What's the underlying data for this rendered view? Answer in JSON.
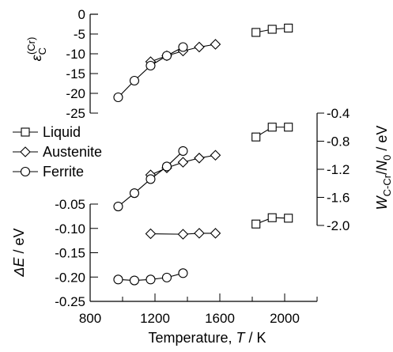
{
  "chart_data": [
    {
      "type": "line",
      "panel": "top",
      "ylabel": "ε_C^(Cr)",
      "ylabel_parts": {
        "sym": "ε",
        "sub": "C",
        "sup": "(Cr)"
      },
      "ylim": [
        -25,
        0
      ],
      "yticks": [
        0,
        -5,
        -10,
        -15,
        -20,
        -25
      ],
      "ytick_labels": [
        "0",
        "-5",
        "-10",
        "-15",
        "-20",
        "-25"
      ],
      "series": [
        {
          "name": "Liquid",
          "marker": "square",
          "x": [
            1823,
            1923,
            2023
          ],
          "y": [
            -4.6,
            -3.8,
            -3.5
          ]
        },
        {
          "name": "Austenite",
          "marker": "diamond",
          "x": [
            1173,
            1273,
            1373,
            1473,
            1573
          ],
          "y": [
            -12.0,
            -10.5,
            -9.3,
            -8.3,
            -7.6
          ]
        },
        {
          "name": "Ferrite",
          "marker": "circle",
          "x": [
            973,
            1073,
            1173,
            1273,
            1373
          ],
          "y": [
            -21.0,
            -16.8,
            -13.0,
            -10.5,
            -8.3
          ]
        }
      ]
    },
    {
      "type": "line",
      "panel": "middle",
      "ylabel": "W_C-Cr / N_0 / eV",
      "ylabel_parts": {
        "sym": "W",
        "sub": "C-Cr",
        "mid": "/",
        "sym2": "N",
        "sub2": "0",
        "tail": " / eV"
      },
      "ylim": [
        -2.0,
        -0.4
      ],
      "yticks": [
        -0.4,
        -0.8,
        -1.2,
        -1.6,
        -2.0
      ],
      "ytick_labels": [
        "-0.4",
        "-0.8",
        "-1.2",
        "-1.6",
        "-2.0"
      ],
      "series": [
        {
          "name": "Liquid",
          "marker": "square",
          "x": [
            1823,
            1923,
            2023
          ],
          "y": [
            -0.74,
            -0.6,
            -0.6
          ]
        },
        {
          "name": "Austenite",
          "marker": "diamond",
          "x": [
            1173,
            1273,
            1373,
            1473,
            1573
          ],
          "y": [
            -1.28,
            -1.18,
            -1.1,
            -1.04,
            -1.0
          ]
        },
        {
          "name": "Ferrite",
          "marker": "circle",
          "x": [
            973,
            1073,
            1173,
            1273,
            1373
          ],
          "y": [
            -1.73,
            -1.54,
            -1.34,
            -1.16,
            -0.94
          ]
        }
      ]
    },
    {
      "type": "line",
      "panel": "bottom",
      "ylabel": "ΔE / eV",
      "ylabel_parts": {
        "sym": "ΔE",
        "tail": " / eV"
      },
      "ylim": [
        -0.25,
        -0.05
      ],
      "yticks": [
        -0.05,
        -0.1,
        -0.15,
        -0.2,
        -0.25
      ],
      "ytick_labels": [
        "-0.05",
        "-0.10",
        "-0.15",
        "-0.20",
        "-0.25"
      ],
      "xlabel": "Temperature, T / K",
      "xlabel_parts": {
        "pre": "Temperature, ",
        "sym": "T",
        "tail": " / K"
      },
      "xlim": [
        800,
        2200
      ],
      "xticks": [
        800,
        1200,
        1600,
        2000
      ],
      "xtick_labels": [
        "800",
        "1200",
        "1600",
        "2000"
      ],
      "series": [
        {
          "name": "Liquid",
          "marker": "square",
          "x": [
            1823,
            1923,
            2023
          ],
          "y": [
            -0.091,
            -0.078,
            -0.079
          ]
        },
        {
          "name": "Austenite",
          "marker": "diamond",
          "x": [
            1173,
            1373,
            1473,
            1573
          ],
          "y": [
            -0.111,
            -0.112,
            -0.11,
            -0.11
          ]
        },
        {
          "name": "Ferrite",
          "marker": "circle",
          "x": [
            973,
            1073,
            1173,
            1273,
            1373
          ],
          "y": [
            -0.205,
            -0.207,
            -0.205,
            -0.201,
            -0.192
          ]
        }
      ]
    }
  ],
  "legend": {
    "placement": "left-middle",
    "entries": [
      {
        "label": "Liquid",
        "marker": "square"
      },
      {
        "label": "Austenite",
        "marker": "diamond"
      },
      {
        "label": "Ferrite",
        "marker": "circle"
      }
    ]
  }
}
